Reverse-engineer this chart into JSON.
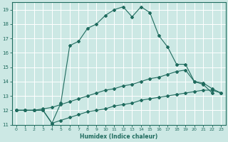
{
  "xlabel": "Humidex (Indice chaleur)",
  "bg_color": "#cce8e4",
  "grid_color": "#ffffff",
  "line_color": "#1f6b5e",
  "xlim": [
    -0.5,
    23.5
  ],
  "ylim": [
    11,
    19.5
  ],
  "yticks": [
    11,
    12,
    13,
    14,
    15,
    16,
    17,
    18,
    19
  ],
  "xticks": [
    0,
    1,
    2,
    3,
    4,
    5,
    6,
    7,
    8,
    9,
    10,
    11,
    12,
    13,
    14,
    15,
    16,
    17,
    18,
    19,
    20,
    21,
    22,
    23
  ],
  "series1_x": [
    0,
    1,
    2,
    3,
    4,
    5,
    6,
    7,
    8,
    9,
    10,
    11,
    12,
    13,
    14,
    15,
    16,
    17,
    18,
    19,
    20,
    21,
    22
  ],
  "series1_y": [
    12,
    12,
    12,
    12,
    11.1,
    12.5,
    16.5,
    16.8,
    17.7,
    18.0,
    18.6,
    19.0,
    19.2,
    18.5,
    19.2,
    18.8,
    17.2,
    16.4,
    15.2,
    15.2,
    14.0,
    13.8,
    13.2
  ],
  "series2_x": [
    0,
    1,
    2,
    3,
    4,
    5,
    6,
    7,
    8,
    9,
    10,
    11,
    12,
    13,
    14,
    15,
    16,
    17,
    18,
    19,
    20,
    21,
    22,
    23
  ],
  "series2_y": [
    12.0,
    12.0,
    12.0,
    12.1,
    12.2,
    12.4,
    12.6,
    12.8,
    13.0,
    13.2,
    13.4,
    13.5,
    13.7,
    13.8,
    14.0,
    14.2,
    14.3,
    14.5,
    14.7,
    14.8,
    14.0,
    13.9,
    13.5,
    13.2
  ],
  "series3_x": [
    0,
    1,
    2,
    3,
    4,
    5,
    6,
    7,
    8,
    9,
    10,
    11,
    12,
    13,
    14,
    15,
    16,
    17,
    18,
    19,
    20,
    21,
    22,
    23
  ],
  "series3_y": [
    12.0,
    12.0,
    12.0,
    12.0,
    11.1,
    11.3,
    11.5,
    11.7,
    11.9,
    12.0,
    12.1,
    12.3,
    12.4,
    12.5,
    12.7,
    12.8,
    12.9,
    13.0,
    13.1,
    13.2,
    13.3,
    13.4,
    13.4,
    13.2
  ]
}
